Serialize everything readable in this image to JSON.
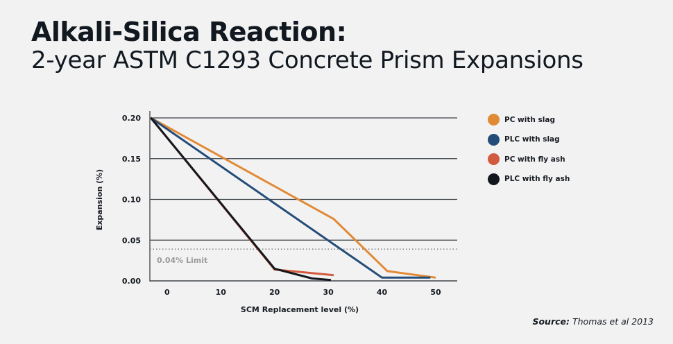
{
  "header": {
    "title": "Alkali-Silica Reaction:",
    "subtitle": "2-year ASTM C1293 Concrete Prism Expansions"
  },
  "source": {
    "label": "Source:",
    "text": " Thomas et al 2013"
  },
  "chart_data": {
    "type": "line",
    "title": "Alkali-Silica Reaction: 2-year ASTM C1293 Concrete Prism Expansions",
    "xlabel": "SCM Replacement level (%)",
    "ylabel": "Expansion (%)",
    "xlim": [
      -3.2,
      54
    ],
    "ylim": [
      0,
      0.2
    ],
    "x_ticks": [
      0,
      10,
      20,
      30,
      40,
      50
    ],
    "x_tick_labels": [
      "0",
      "10",
      "20",
      "30",
      "40",
      "50"
    ],
    "y_ticks": [
      0,
      0.05,
      0.1,
      0.15,
      0.2
    ],
    "y_tick_labels": [
      "0.00",
      "0.05",
      "0.10",
      "0.15",
      "0.20"
    ],
    "grid": "horizontal",
    "legend_position": "right",
    "reference_line": {
      "value": 0.039,
      "label": "0.04% Limit",
      "style": "dotted"
    },
    "series": [
      {
        "name": "PC with slag",
        "color": "#e08a36",
        "points": [
          [
            -3,
            0.2
          ],
          [
            31,
            0.076
          ],
          [
            41,
            0.012
          ],
          [
            50,
            0.004
          ]
        ]
      },
      {
        "name": "PLC with slag",
        "color": "#244c78",
        "points": [
          [
            -3,
            0.2
          ],
          [
            40,
            0.004
          ],
          [
            49,
            0.004
          ]
        ]
      },
      {
        "name": "PC with fly ash",
        "color": "#d15a3f",
        "points": [
          [
            -3,
            0.2
          ],
          [
            20,
            0.014
          ],
          [
            31,
            0.007
          ]
        ]
      },
      {
        "name": "PLC with fly ash",
        "color": "#12171e",
        "points": [
          [
            -3,
            0.2
          ],
          [
            20,
            0.015
          ],
          [
            27,
            0.003
          ],
          [
            30.5,
            0.001
          ]
        ]
      }
    ]
  }
}
